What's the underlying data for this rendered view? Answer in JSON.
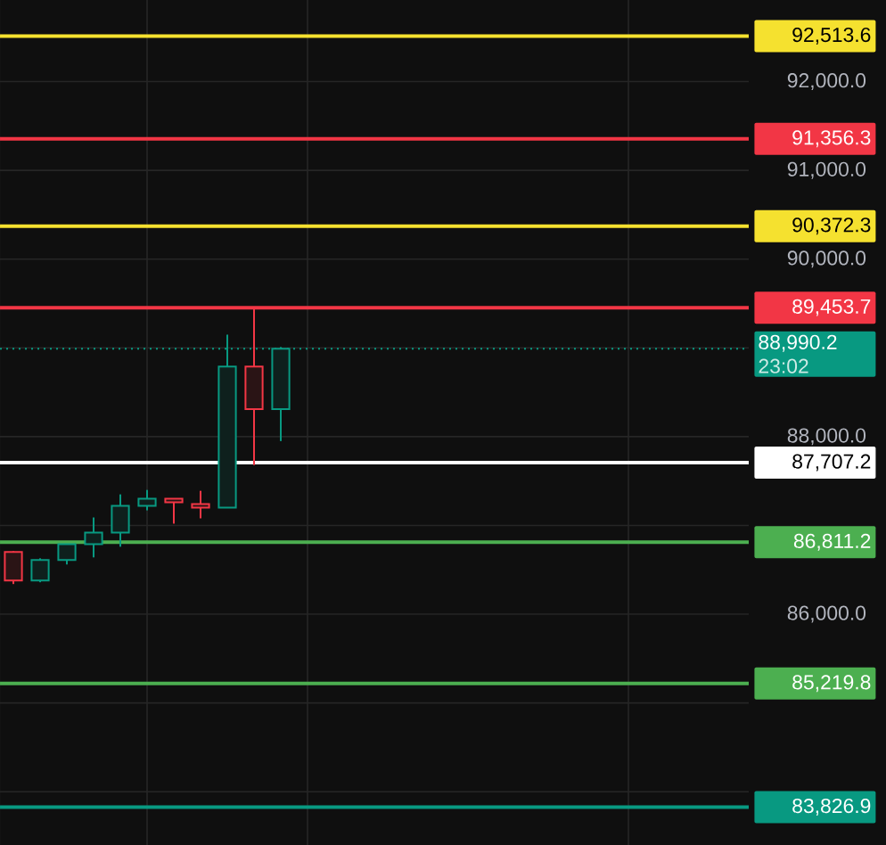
{
  "chart_data": {
    "type": "candlestick",
    "categories": [
      null,
      null,
      null,
      null,
      null,
      null,
      null,
      null,
      null,
      null,
      null,
      null,
      null,
      null,
      null,
      null,
      null,
      null,
      null,
      null,
      null,
      null,
      null,
      null,
      null,
      null,
      null,
      null
    ],
    "ohlc": [
      [
        86700,
        86710,
        86340,
        86380
      ],
      [
        86380,
        86630,
        86360,
        86610
      ],
      [
        86610,
        86790,
        86560,
        86790
      ],
      [
        86790,
        87090,
        86640,
        86920
      ],
      [
        86920,
        87350,
        86760,
        87220
      ],
      [
        87220,
        87400,
        87170,
        87300
      ],
      [
        87300,
        87300,
        87020,
        87260
      ],
      [
        87240,
        87390,
        87080,
        87200
      ],
      [
        87200,
        89150,
        87200,
        88790
      ],
      [
        88790,
        89450,
        87680,
        88310
      ],
      [
        88310,
        89010,
        87950,
        88990
      ],
      null,
      null,
      null,
      null,
      null,
      null,
      null,
      null,
      null,
      null,
      null,
      null,
      null,
      null,
      null,
      null,
      null
    ],
    "colors": [
      "#f23645",
      "#089981",
      "#089981",
      "#089981",
      "#089981",
      "#089981",
      "#f23645",
      "#f23645",
      "#089981",
      "#f23645",
      "#089981",
      null,
      null,
      null,
      null,
      null,
      null,
      null,
      null,
      null,
      null,
      null,
      null,
      null,
      null,
      null,
      null,
      null
    ],
    "ylim": [
      83400,
      92920
    ],
    "yticks": [
      {
        "value": 84000,
        "label": null
      },
      {
        "value": 85000,
        "label": null
      },
      {
        "value": 86000,
        "label": "86,000.0"
      },
      {
        "value": 87000,
        "label": null
      },
      {
        "value": 88000,
        "label": "88,000.0"
      },
      {
        "value": 89000,
        "label": null
      },
      {
        "value": 90000,
        "label": "90,000.0"
      },
      {
        "value": 91000,
        "label": "91,000.0"
      },
      {
        "value": 92000,
        "label": "92,000.0"
      }
    ],
    "grid": true,
    "tick_labels": "y",
    "ref_lines": [
      {
        "axis": "y",
        "value": 92513.6,
        "label": "92,513.6",
        "color": "#f5e12f"
      },
      {
        "axis": "y",
        "value": 91356.3,
        "label": "91,356.3",
        "color": "#f23645"
      },
      {
        "axis": "y",
        "value": 90372.3,
        "label": "90,372.3",
        "color": "#f5e12f"
      },
      {
        "axis": "y",
        "value": 89453.7,
        "label": "89,453.7",
        "color": "#f23645"
      },
      {
        "axis": "y",
        "value": 88990.2,
        "label": "88,990.2",
        "color": "#089981",
        "line_style": "dotted"
      },
      {
        "axis": "y",
        "value": 87707.2,
        "label": "87,707.2",
        "color": "#ffffff"
      },
      {
        "axis": "y",
        "value": 86811.2,
        "label": "86,811.2",
        "color": "#4caf50"
      },
      {
        "axis": "y",
        "value": 85219.8,
        "label": "85,219.8",
        "color": "#4caf50"
      },
      {
        "axis": "y",
        "value": 83826.9,
        "label": "83,826.9",
        "color": "#089981"
      }
    ],
    "annotations": [
      "23:02"
    ]
  }
}
